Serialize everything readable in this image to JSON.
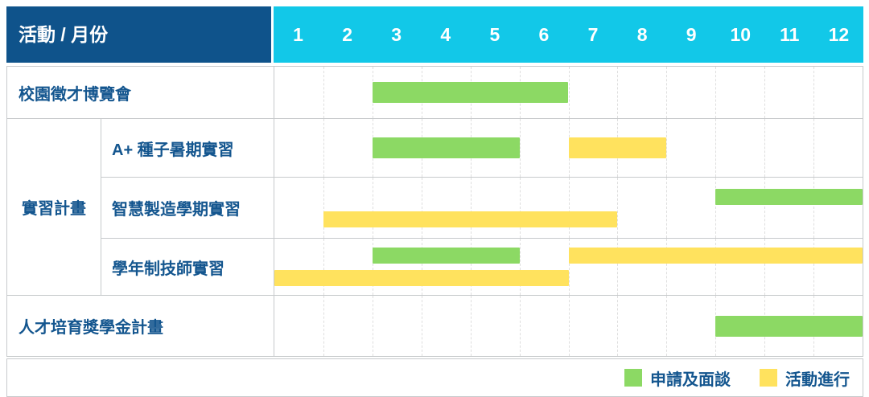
{
  "header": {
    "title": "活動 / 月份"
  },
  "chart_data": {
    "type": "gantt",
    "months": [
      "1",
      "2",
      "3",
      "4",
      "5",
      "6",
      "7",
      "8",
      "9",
      "10",
      "11",
      "12"
    ],
    "colors": {
      "apply": "#8cd964",
      "activity": "#ffe25e",
      "header_bg": "#0f538b",
      "months_bg": "#12c8e8",
      "label_text": "#14568f",
      "border": "#c7cacc"
    },
    "legend": [
      {
        "key": "apply",
        "label": "申請及面談"
      },
      {
        "key": "activity",
        "label": "活動進行"
      }
    ],
    "group": {
      "label": "實習計畫",
      "row_start": 2,
      "row_end": 4
    },
    "rows": [
      {
        "label": "校園徵才博覽會",
        "in_group": false,
        "tracks": [
          [
            {
              "type": "apply",
              "start": 3,
              "end": 6
            }
          ]
        ]
      },
      {
        "label": "A+ 種子暑期實習",
        "in_group": true,
        "tracks": [
          [
            {
              "type": "apply",
              "start": 3,
              "end": 5
            },
            {
              "type": "activity",
              "start": 7,
              "end": 8
            }
          ]
        ]
      },
      {
        "label": "智慧製造學期實習",
        "in_group": true,
        "tracks": [
          [
            {
              "type": "apply",
              "start": 10,
              "end": 12
            }
          ],
          [
            {
              "type": "activity",
              "start": 2,
              "end": 7
            }
          ]
        ]
      },
      {
        "label": "學年制技師實習",
        "in_group": true,
        "tracks": [
          [
            {
              "type": "apply",
              "start": 3,
              "end": 5
            },
            {
              "type": "activity",
              "start": 7,
              "end": 12
            }
          ],
          [
            {
              "type": "activity",
              "start": 1,
              "end": 6
            }
          ]
        ]
      },
      {
        "label": "人才培育獎學金計畫",
        "in_group": false,
        "tracks": [
          [
            {
              "type": "apply",
              "start": 10,
              "end": 12
            }
          ]
        ]
      }
    ]
  }
}
